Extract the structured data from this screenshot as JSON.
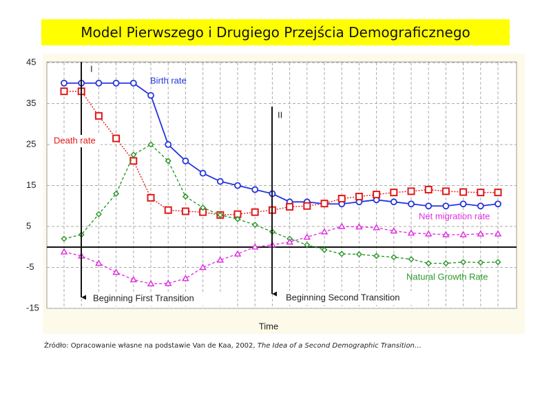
{
  "chart_data": {
    "type": "line",
    "title": "Model Pierwszego i Drugiego Przejścia Demograficznego",
    "xlabel": "Time",
    "categories": [
      null,
      null,
      null,
      null,
      null,
      null,
      null,
      null,
      null,
      null,
      null,
      null,
      null,
      null,
      null,
      null,
      null,
      null,
      null,
      null,
      null,
      null,
      null,
      null,
      null,
      null
    ],
    "ylim": [
      -15,
      45
    ],
    "yticks": [
      45,
      35,
      25,
      15,
      5,
      -5,
      -15
    ],
    "grid": true,
    "series": [
      {
        "name": "Birth rate",
        "color": "#2233dd",
        "marker": "circle",
        "dash": "solid",
        "values": [
          40,
          40,
          40,
          40,
          40,
          37,
          25,
          21,
          18,
          16,
          15,
          14,
          13,
          11,
          11,
          10.5,
          10.5,
          11,
          11.5,
          11,
          10.5,
          10,
          10,
          10.5,
          10,
          10.5
        ]
      },
      {
        "name": "Death rate",
        "color": "#e01818",
        "marker": "square",
        "dash": "dotted",
        "values": [
          38,
          38,
          32,
          26.5,
          21,
          12,
          9,
          8.7,
          8.5,
          7.8,
          8,
          8.5,
          9,
          9.8,
          10,
          10.6,
          11.8,
          12.3,
          12.8,
          13.3,
          13.6,
          14,
          13.6,
          13.4,
          13.3,
          13.3
        ]
      },
      {
        "name": "Natural Growth Rate",
        "color": "#2a992a",
        "marker": "diamond",
        "dash": "dashed",
        "values": [
          2,
          3,
          8,
          13,
          22.5,
          25,
          21,
          12.3,
          9.6,
          7.8,
          6.8,
          5.4,
          3.7,
          2,
          0.5,
          -0.7,
          -1.7,
          -1.8,
          -2.2,
          -2.5,
          -3,
          -4,
          -4,
          -3.7,
          -3.8,
          -3.7
        ]
      },
      {
        "name": "Net migration rate",
        "color": "#e030e0",
        "marker": "triangle",
        "dash": "dashed",
        "values": [
          -1.2,
          -2.2,
          -4,
          -6.2,
          -8,
          -9,
          -8.9,
          -7.7,
          -5,
          -3.2,
          -1.7,
          0,
          0.5,
          1.2,
          2.4,
          3.7,
          5,
          4.9,
          4.7,
          3.9,
          3.4,
          3.2,
          3,
          3,
          3.2,
          3.2
        ]
      }
    ],
    "annotations": {
      "first_marker": "I",
      "second_marker": "II",
      "first_transition": "Beginning First Transition",
      "second_transition": "Beginning Second Transition"
    }
  },
  "source": "Źródło: Opracowanie własne na podstawie Van de Kaa, 2002, ",
  "source_title": "The Idea of a Second Demographic Transition…"
}
